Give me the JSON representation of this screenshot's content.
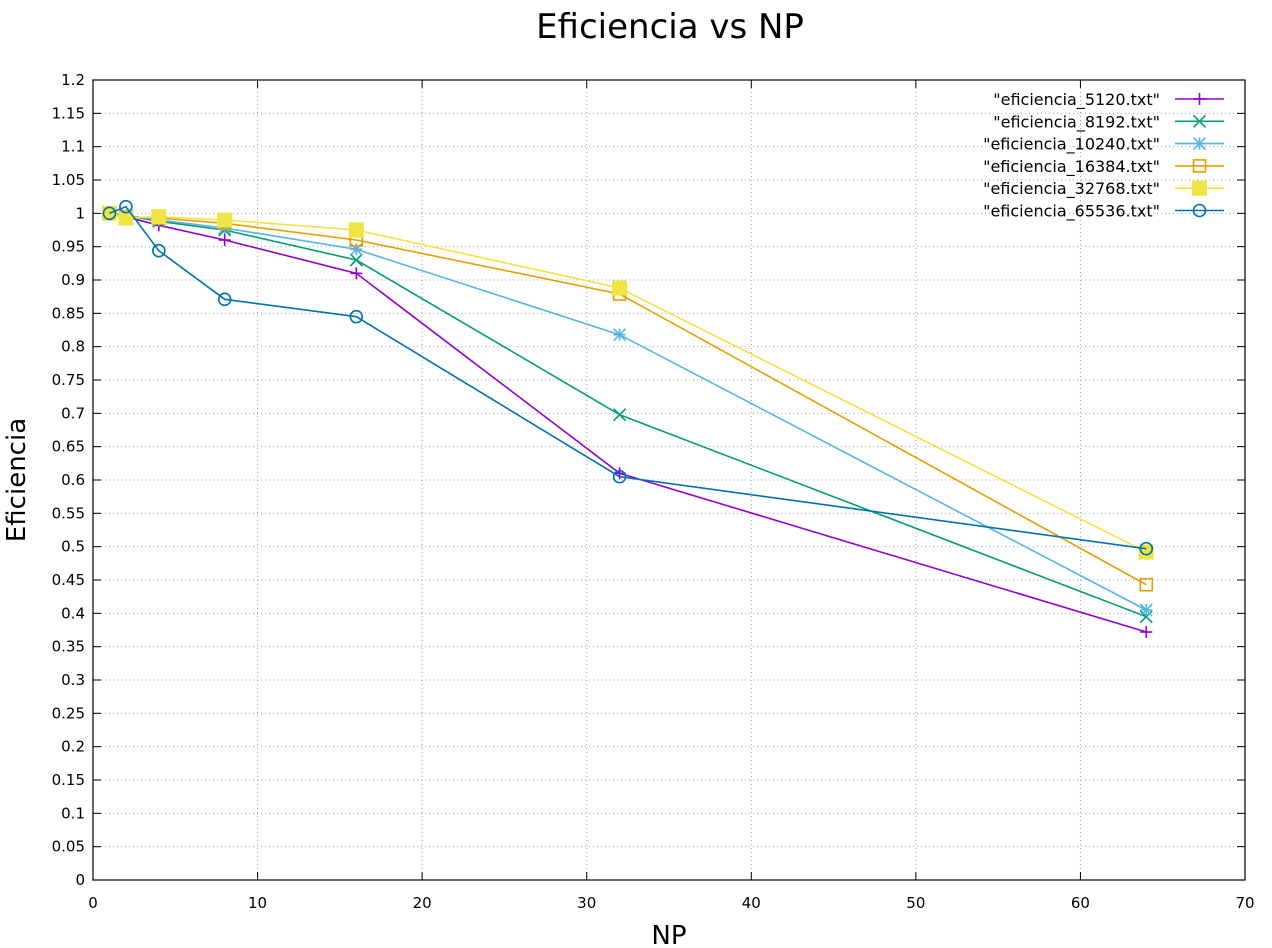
{
  "chart_data": {
    "type": "line",
    "title": "Eficiencia vs NP",
    "xlabel": "NP",
    "ylabel": "Eficiencia",
    "xlim": [
      0,
      70
    ],
    "ylim": [
      0,
      1.2
    ],
    "xticks": [
      0,
      10,
      20,
      30,
      40,
      50,
      60,
      70
    ],
    "yticks": [
      0,
      0.05,
      0.1,
      0.15,
      0.2,
      0.25,
      0.3,
      0.35,
      0.4,
      0.45,
      0.5,
      0.55,
      0.6,
      0.65,
      0.7,
      0.75,
      0.8,
      0.85,
      0.9,
      0.95,
      1,
      1.05,
      1.1,
      1.15,
      1.2
    ],
    "grid": true,
    "legend_position": "top-right",
    "series": [
      {
        "name": "\"eficiencia_5120.txt\"",
        "color": "#9400d3",
        "marker": "plus",
        "x": [
          1,
          2,
          4,
          8,
          16,
          32,
          64
        ],
        "y": [
          1.0,
          0.995,
          0.982,
          0.96,
          0.91,
          0.61,
          0.372
        ]
      },
      {
        "name": "\"eficiencia_8192.txt\"",
        "color": "#009e73",
        "marker": "cross",
        "x": [
          1,
          2,
          4,
          8,
          16,
          32,
          64
        ],
        "y": [
          1.0,
          0.997,
          0.988,
          0.975,
          0.93,
          0.698,
          0.395
        ]
      },
      {
        "name": "\"eficiencia_10240.txt\"",
        "color": "#56b4e9",
        "marker": "star",
        "x": [
          1,
          2,
          4,
          8,
          16,
          32,
          64
        ],
        "y": [
          1.0,
          0.997,
          0.99,
          0.978,
          0.946,
          0.818,
          0.405
        ]
      },
      {
        "name": "\"eficiencia_16384.txt\"",
        "color": "#e69f00",
        "marker": "open-square",
        "x": [
          1,
          2,
          4,
          8,
          16,
          32,
          64
        ],
        "y": [
          1.0,
          0.995,
          0.993,
          0.985,
          0.96,
          0.879,
          0.443
        ]
      },
      {
        "name": "\"eficiencia_32768.txt\"",
        "color": "#f0e442",
        "marker": "filled-square",
        "x": [
          1,
          2,
          4,
          8,
          16,
          32,
          64
        ],
        "y": [
          1.0,
          0.993,
          0.995,
          0.99,
          0.975,
          0.888,
          0.492
        ]
      },
      {
        "name": "\"eficiencia_65536.txt\"",
        "color": "#0072b2",
        "marker": "open-circle",
        "x": [
          1,
          2,
          4,
          8,
          16,
          32,
          64
        ],
        "y": [
          1.0,
          1.01,
          0.944,
          0.871,
          0.845,
          0.605,
          0.497
        ]
      }
    ]
  }
}
